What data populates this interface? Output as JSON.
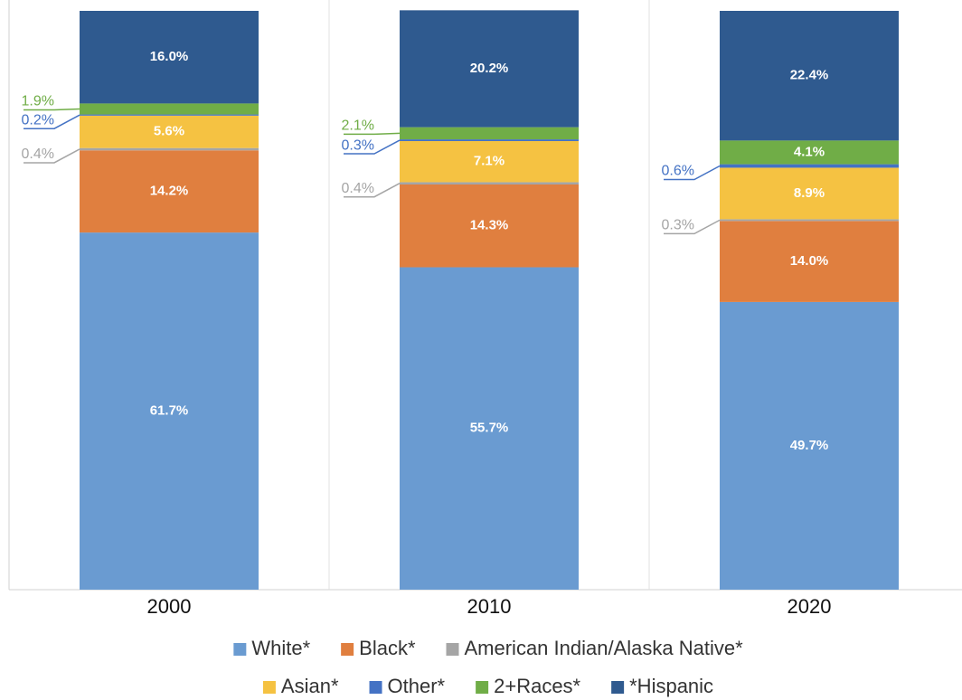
{
  "chart_data": {
    "type": "stacked_bar",
    "categories": [
      "2000",
      "2010",
      "2020"
    ],
    "ylim": [
      0,
      100
    ],
    "series": [
      {
        "name": "White*",
        "color": "#6a9bd1",
        "values": [
          61.7,
          55.7,
          49.7
        ],
        "value_labels": [
          "61.7%",
          "55.7%",
          "49.7%"
        ]
      },
      {
        "name": "Black*",
        "color": "#e07f3f",
        "values": [
          14.2,
          14.3,
          14.0
        ],
        "value_labels": [
          "14.2%",
          "14.3%",
          "14.0%"
        ]
      },
      {
        "name": "American Indian/Alaska Native*",
        "color": "#a5a5a5",
        "values": [
          0.4,
          0.4,
          0.3
        ],
        "value_labels": [
          "0.4%",
          "0.4%",
          "0.3%"
        ]
      },
      {
        "name": "Asian*",
        "color": "#f5c242",
        "values": [
          5.6,
          7.1,
          8.9
        ],
        "value_labels": [
          "5.6%",
          "7.1%",
          "8.9%"
        ]
      },
      {
        "name": "Other*",
        "color": "#4472c4",
        "values": [
          0.2,
          0.3,
          0.6
        ],
        "value_labels": [
          "0.2%",
          "0.3%",
          "0.6%"
        ]
      },
      {
        "name": "2+Races*",
        "color": "#70ad47",
        "values": [
          1.9,
          2.1,
          4.1
        ],
        "value_labels": [
          "1.9%",
          "2.1%",
          "4.1%"
        ]
      },
      {
        "name": "*Hispanic",
        "color": "#2f5a8f",
        "values": [
          16.0,
          20.2,
          22.4
        ],
        "value_labels": [
          "16.0%",
          "20.2%",
          "22.4%"
        ]
      }
    ]
  }
}
